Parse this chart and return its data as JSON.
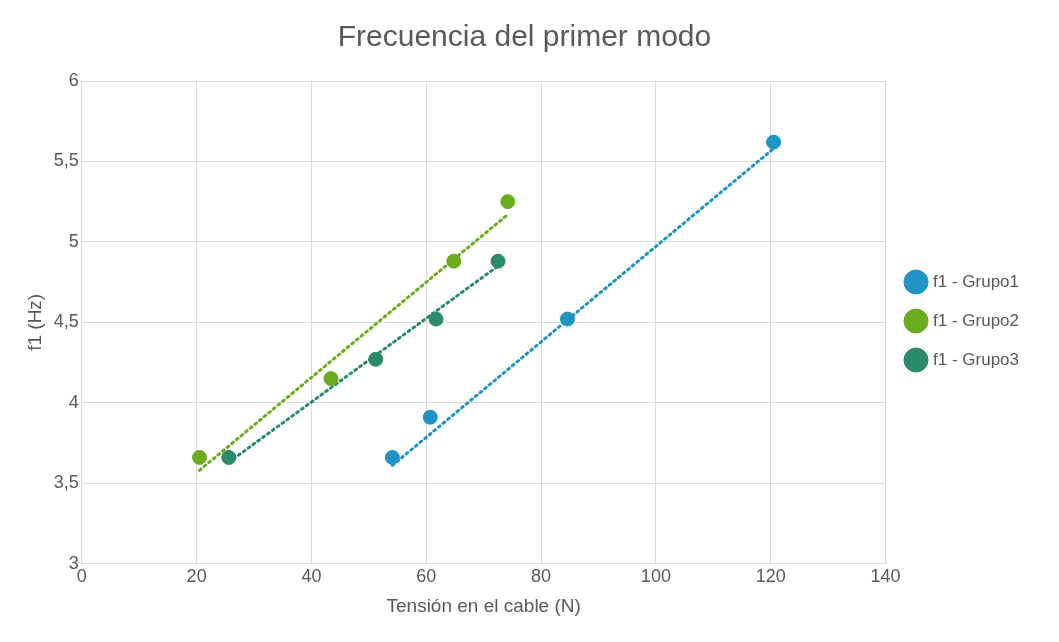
{
  "chart_data": {
    "type": "scatter",
    "title": "Frecuencia del primer modo",
    "xlabel": "Tensión en el cable (N)",
    "ylabel": "f1 (Hz)",
    "xlim": [
      0,
      140
    ],
    "xticks": [
      0,
      20,
      40,
      60,
      80,
      100,
      120,
      140
    ],
    "ylim": [
      3,
      6
    ],
    "yticks": [
      3,
      {
        "value": 3.5,
        "label": "3,5"
      },
      4,
      {
        "value": 4.5,
        "label": "4,5"
      },
      5,
      {
        "value": 5.5,
        "label": "5,5"
      },
      6
    ],
    "grid": true,
    "legend": "right",
    "marker": "circle",
    "series": [
      {
        "name": "f1 - Grupo1",
        "color": "#1f94c4",
        "x": [
          54.1,
          60.7,
          84.6,
          120.5
        ],
        "values": [
          3.66,
          3.91,
          4.52,
          5.62
        ]
      },
      {
        "name": "f1 - Grupo2",
        "color": "#6aac1e",
        "x": [
          20.5,
          43.4,
          64.8,
          74.2
        ],
        "values": [
          3.66,
          4.15,
          4.88,
          5.25
        ]
      },
      {
        "name": "f1 - Grupo3",
        "color": "#2a8a6a",
        "x": [
          25.6,
          51.2,
          61.7,
          72.5
        ],
        "values": [
          3.66,
          4.27,
          4.52,
          4.88
        ]
      },
      {
        "type": "line",
        "color": "#1f94c4",
        "line_style": "dotted",
        "marker": "none",
        "x": [
          54.1,
          120.5
        ],
        "values": [
          3.61,
          5.58
        ]
      },
      {
        "type": "line",
        "color": "#6aac1e",
        "line_style": "dotted",
        "marker": "none",
        "x": [
          20.5,
          74.2
        ],
        "values": [
          3.58,
          5.17
        ]
      },
      {
        "type": "line",
        "color": "#2a8a6a",
        "line_style": "dotted",
        "marker": "none",
        "x": [
          25.6,
          72.5
        ],
        "values": [
          3.63,
          4.85
        ]
      }
    ]
  }
}
